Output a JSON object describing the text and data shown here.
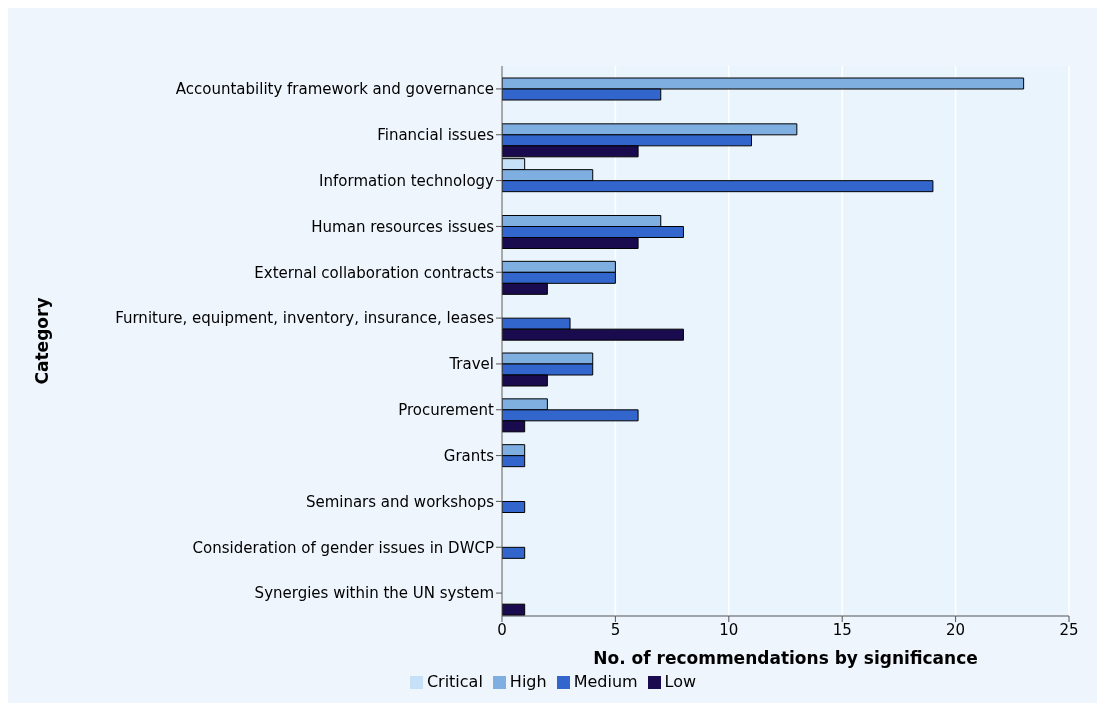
{
  "chart_data": {
    "type": "bar",
    "orientation": "horizontal",
    "xlabel": "No. of recommendations by significance",
    "ylabel": "Category",
    "categories": [
      "Accountability framework and governance",
      "Financial issues",
      "Information technology",
      "Human resources issues",
      "External collaboration contracts",
      "Furniture, equipment, inventory, insurance, leases",
      "Travel",
      "Procurement",
      "Grants",
      "Seminars and workshops",
      "Consideration of gender issues in DWCP",
      "Synergies within the UN system"
    ],
    "series": [
      {
        "name": "Critical",
        "color": "#c6e0f8",
        "values": [
          0,
          0,
          1,
          0,
          0,
          0,
          0,
          0,
          0,
          0,
          0,
          0
        ]
      },
      {
        "name": "High",
        "color": "#7fafe0",
        "values": [
          23,
          13,
          4,
          7,
          5,
          0,
          4,
          2,
          1,
          0,
          0,
          0
        ]
      },
      {
        "name": "Medium",
        "color": "#3366cc",
        "values": [
          7,
          11,
          19,
          8,
          5,
          3,
          4,
          6,
          1,
          1,
          1,
          0
        ]
      },
      {
        "name": "Low",
        "color": "#1a0a4e",
        "values": [
          0,
          6,
          0,
          6,
          2,
          8,
          2,
          1,
          0,
          0,
          0,
          1
        ]
      }
    ],
    "xlim": [
      0,
      25
    ],
    "xticks": [
      0,
      5,
      10,
      15,
      20,
      25
    ],
    "grid": "x",
    "legend": "bottom"
  }
}
